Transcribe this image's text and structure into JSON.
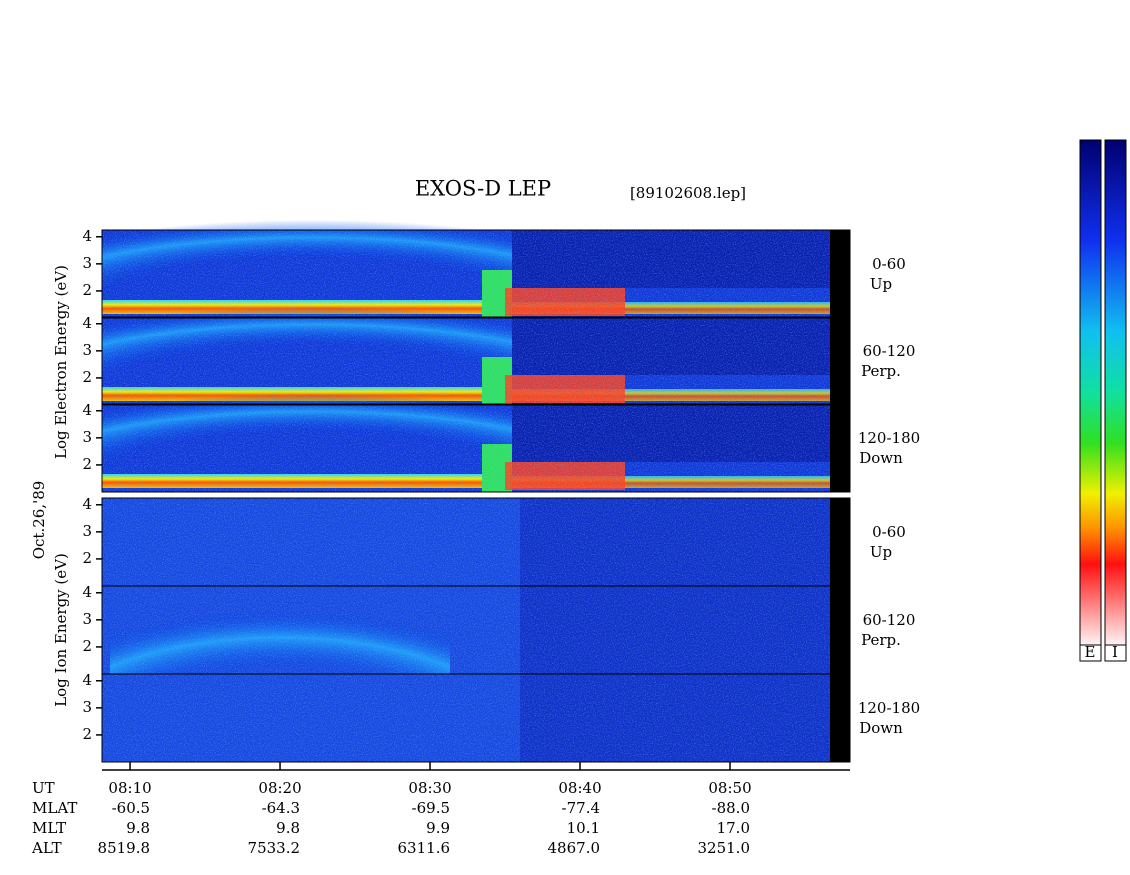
{
  "chart_data": {
    "type": "spectrogram",
    "title": "EXOS-D LEP",
    "file_label": "[89102608.lep]",
    "date_label": "Oct.26,'89",
    "y_labels": [
      "Log Electron Energy (eV)",
      "Log Ion Energy (eV)"
    ],
    "panels": [
      {
        "angle": "0-60",
        "direction": "Up"
      },
      {
        "angle": "60-120",
        "direction": "Perp."
      },
      {
        "angle": "120-180",
        "direction": "Down"
      },
      {
        "angle": "0-60",
        "direction": "Up"
      },
      {
        "angle": "60-120",
        "direction": "Perp."
      },
      {
        "angle": "120-180",
        "direction": "Down"
      }
    ],
    "ylim": [
      1,
      4.25
    ],
    "yticks": [
      2,
      3,
      4
    ],
    "xlim": [
      8.13,
      58
    ],
    "xticks": [
      {
        "value": 10,
        "label": "08:10"
      },
      {
        "value": 20,
        "label": "08:20"
      },
      {
        "value": 30,
        "label": "08:30"
      },
      {
        "value": 40,
        "label": "08:40"
      },
      {
        "value": 50,
        "label": "08:50"
      }
    ],
    "orbit": {
      "labels": [
        "UT",
        "MLAT",
        "MLT",
        "ALT"
      ],
      "rows": [
        [
          "-60.5",
          "-64.3",
          "-69.5",
          "-77.4",
          "-88.0"
        ],
        [
          "9.8",
          "9.8",
          "9.9",
          "10.1",
          "17.0"
        ],
        [
          "8519.8",
          "7533.2",
          "6311.6",
          "4867.0",
          "3251.0"
        ]
      ]
    },
    "colorbar_labels": [
      "E",
      "I"
    ]
  }
}
